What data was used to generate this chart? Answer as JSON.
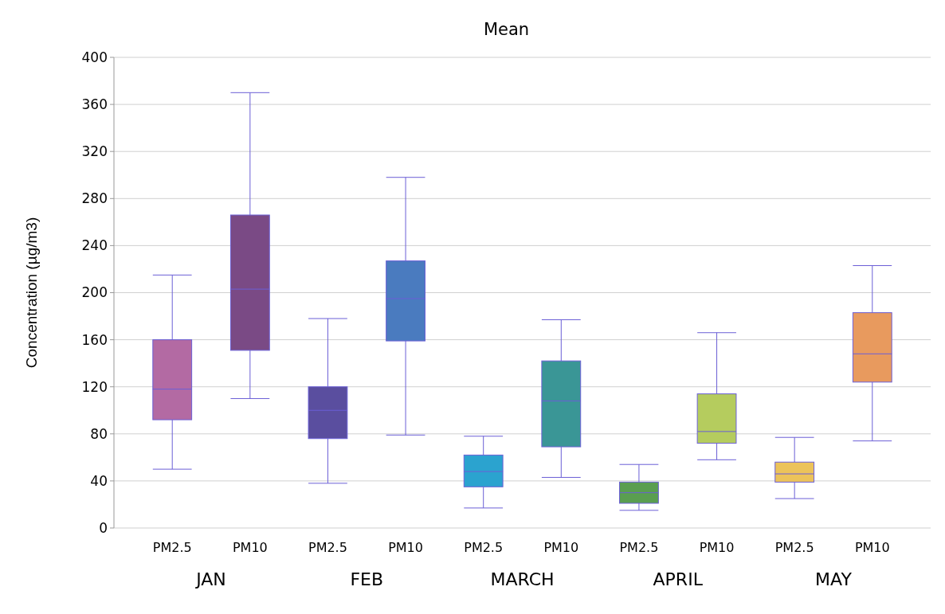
{
  "chart_data": {
    "type": "box",
    "title": "Mean",
    "ylabel": "Concentration (µg/m3)",
    "categories": [
      "PM2.5",
      "PM10",
      "PM2.5",
      "PM10",
      "PM2.5",
      "PM10",
      "PM2.5",
      "PM10",
      "PM2.5",
      "PM10"
    ],
    "boxes": [
      {
        "low": 50,
        "q1": 92,
        "median": 118,
        "q3": 160,
        "high": 215
      },
      {
        "low": 110,
        "q1": 151,
        "median": 203,
        "q3": 266,
        "high": 370
      },
      {
        "low": 38,
        "q1": 76,
        "median": 100,
        "q3": 120,
        "high": 178
      },
      {
        "low": 79,
        "q1": 159,
        "median": 195,
        "q3": 227,
        "high": 298
      },
      {
        "low": 17,
        "q1": 35,
        "median": 48,
        "q3": 62,
        "high": 78
      },
      {
        "low": 43,
        "q1": 69,
        "median": 108,
        "q3": 142,
        "high": 177
      },
      {
        "low": 15,
        "q1": 21,
        "median": 30,
        "q3": 39,
        "high": 54
      },
      {
        "low": 58,
        "q1": 72,
        "median": 82,
        "q3": 114,
        "high": 166
      },
      {
        "low": 25,
        "q1": 39,
        "median": 46,
        "q3": 56,
        "high": 77
      },
      {
        "low": 74,
        "q1": 124,
        "median": 148,
        "q3": 183,
        "high": 223
      }
    ],
    "colors": [
      "#b36aa3",
      "#7a4a85",
      "#5a4e9f",
      "#4a7bbf",
      "#2ba3cf",
      "#3a9696",
      "#5a9e50",
      "#b5cc5e",
      "#ecc35a",
      "#e89a5e"
    ],
    "annotations": [
      "JAN",
      "FEB",
      "MARCH",
      "APRIL",
      "MAY"
    ],
    "ylim": [
      0,
      400
    ],
    "yticks": [
      0,
      40,
      80,
      120,
      160,
      200,
      240,
      280,
      320,
      360,
      400
    ],
    "grid": "y"
  }
}
